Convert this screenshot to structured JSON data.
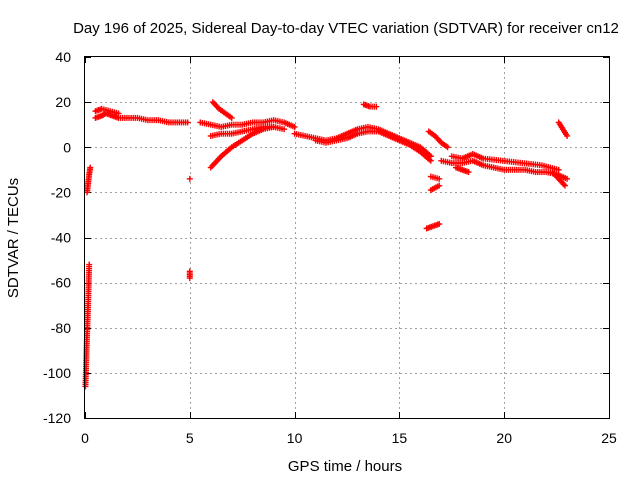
{
  "chart_data": {
    "type": "scatter",
    "title": "Day 196 of 2025, Sidereal Day-to-day VTEC variation (SDTVAR) for receiver cn12",
    "xlabel": "GPS time / hours",
    "ylabel": "SDTVAR / TECUs",
    "xlim": [
      0,
      25
    ],
    "ylim": [
      -120,
      40
    ],
    "xticks": [
      0,
      5,
      10,
      15,
      20,
      25
    ],
    "yticks": [
      -120,
      -100,
      -80,
      -60,
      -40,
      -20,
      0,
      20,
      40
    ],
    "grid": true,
    "marker": "+",
    "color": "#ff0000",
    "segments": [
      {
        "name": "early-high-a",
        "x": [
          0.1,
          0.15,
          0.2,
          0.25
        ],
        "y": [
          -20,
          -16,
          -12,
          -9
        ]
      },
      {
        "name": "early-low",
        "x": [
          0.02,
          0.05,
          0.08,
          0.11,
          0.14,
          0.17,
          0.2
        ],
        "y": [
          -106,
          -98,
          -88,
          -80,
          -72,
          -62,
          -52
        ]
      },
      {
        "name": "main-start",
        "x": [
          0.5,
          0.8,
          1.0,
          1.3,
          1.6,
          2.0,
          2.5,
          3.0,
          3.5,
          4.0,
          4.5,
          4.9
        ],
        "y": [
          13,
          14,
          15,
          14,
          13,
          13,
          13,
          12,
          12,
          11,
          11,
          11
        ]
      },
      {
        "name": "main-start-upper",
        "x": [
          0.5,
          0.8,
          1.2,
          1.6
        ],
        "y": [
          16,
          17,
          16,
          15
        ]
      },
      {
        "name": "isolated-5a",
        "x": [
          5.0
        ],
        "y": [
          -14
        ]
      },
      {
        "name": "isolated-5b",
        "x": [
          5.0,
          5.0
        ],
        "y": [
          -55,
          -58
        ]
      },
      {
        "name": "evening-a",
        "x": [
          5.5,
          6.0,
          6.5,
          7.0,
          7.5,
          8.0,
          8.5,
          9.0,
          9.5,
          10.0
        ],
        "y": [
          11,
          10,
          9,
          10,
          10,
          11,
          11,
          12,
          11,
          9
        ]
      },
      {
        "name": "evening-b",
        "x": [
          6.0,
          6.5,
          7.0,
          7.5,
          8.0,
          8.5,
          9.0,
          9.5
        ],
        "y": [
          5,
          6,
          6,
          7,
          8,
          9,
          9,
          8
        ]
      },
      {
        "name": "rising-arc",
        "x": [
          6.0,
          6.5,
          7.0,
          7.5,
          8.0,
          8.5,
          9.0
        ],
        "y": [
          -9,
          -4,
          0,
          3,
          6,
          8,
          9
        ]
      },
      {
        "name": "descending-6",
        "x": [
          6.1,
          6.4,
          6.7,
          7.0
        ],
        "y": [
          20,
          17,
          15,
          13
        ]
      },
      {
        "name": "afternoon",
        "x": [
          10.0,
          10.5,
          11.0,
          11.5,
          12.0,
          12.5,
          13.0,
          13.5,
          14.0,
          14.5,
          15.0,
          15.5,
          16.0,
          16.5
        ],
        "y": [
          6,
          5,
          4,
          3,
          4,
          6,
          8,
          9,
          8,
          6,
          4,
          2,
          0,
          -4
        ]
      },
      {
        "name": "afternoon-lower",
        "x": [
          11.0,
          11.5,
          12.0,
          12.5,
          13.0,
          13.5,
          14.0,
          14.5,
          15.0,
          15.5,
          16.0,
          16.5
        ],
        "y": [
          3,
          2,
          3,
          4,
          6,
          7,
          7,
          5,
          3,
          1,
          -2,
          -6
        ]
      },
      {
        "name": "hump-13",
        "x": [
          13.3,
          13.6,
          13.9
        ],
        "y": [
          19,
          18,
          18
        ]
      },
      {
        "name": "short-16-upper",
        "x": [
          16.4,
          16.7,
          17.0,
          17.3
        ],
        "y": [
          7,
          5,
          2,
          0
        ]
      },
      {
        "name": "short-16-mid",
        "x": [
          16.5,
          16.9
        ],
        "y": [
          -13,
          -14
        ]
      },
      {
        "name": "short-16-low",
        "x": [
          16.5,
          16.9
        ],
        "y": [
          -19,
          -17
        ]
      },
      {
        "name": "short-16-bottom",
        "x": [
          16.3,
          16.6,
          16.9
        ],
        "y": [
          -36,
          -35,
          -34
        ]
      },
      {
        "name": "evening-tail",
        "x": [
          17.0,
          17.5,
          18.0,
          18.5,
          19.0,
          19.5,
          20.0,
          20.5,
          21.0,
          21.5,
          22.0,
          22.5,
          23.0
        ],
        "y": [
          -6,
          -7,
          -7,
          -6,
          -8,
          -9,
          -10,
          -10,
          -10,
          -11,
          -11,
          -12,
          -14
        ]
      },
      {
        "name": "evening-tail-upper",
        "x": [
          17.5,
          18.0,
          18.5,
          19.0,
          21.8,
          22.2,
          22.6
        ],
        "y": [
          -4,
          -5,
          -3,
          -5,
          -8,
          -9,
          -10
        ]
      },
      {
        "name": "late-17",
        "x": [
          17.7,
          18.0,
          18.3
        ],
        "y": [
          -9,
          -10,
          -11
        ]
      },
      {
        "name": "late-22",
        "x": [
          22.3,
          22.6,
          22.9
        ],
        "y": [
          -11,
          -14,
          -17
        ]
      },
      {
        "name": "late-22-upper",
        "x": [
          22.6,
          22.8,
          23.0
        ],
        "y": [
          11,
          8,
          5
        ]
      }
    ]
  }
}
